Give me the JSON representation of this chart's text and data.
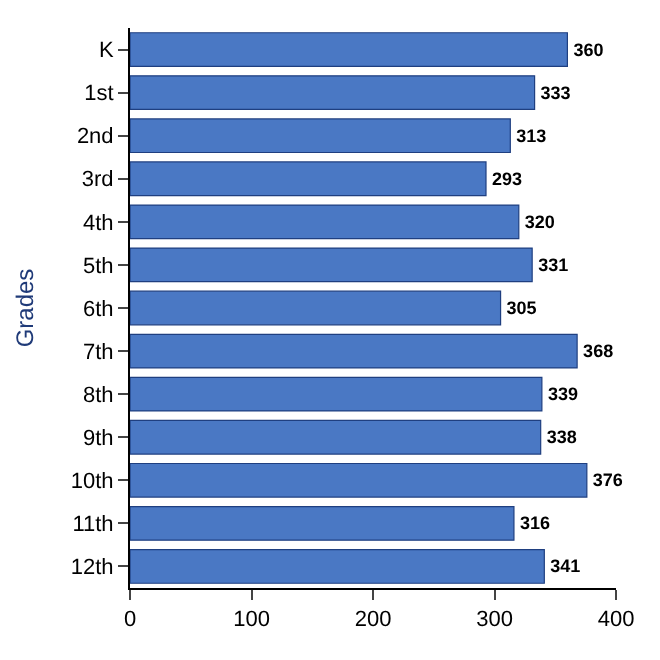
{
  "chart_data": {
    "type": "bar",
    "orientation": "horizontal",
    "ylabel": "Grades",
    "categories": [
      "K",
      "1st",
      "2nd",
      "3rd",
      "4th",
      "5th",
      "6th",
      "7th",
      "8th",
      "9th",
      "10th",
      "11th",
      "12th"
    ],
    "values": [
      360,
      333,
      313,
      293,
      320,
      331,
      305,
      368,
      339,
      338,
      376,
      316,
      341
    ],
    "color": "#4a78c4",
    "xlim": [
      0,
      400
    ],
    "xticks": [
      0,
      100,
      200,
      300,
      400
    ],
    "data_labels": true
  }
}
